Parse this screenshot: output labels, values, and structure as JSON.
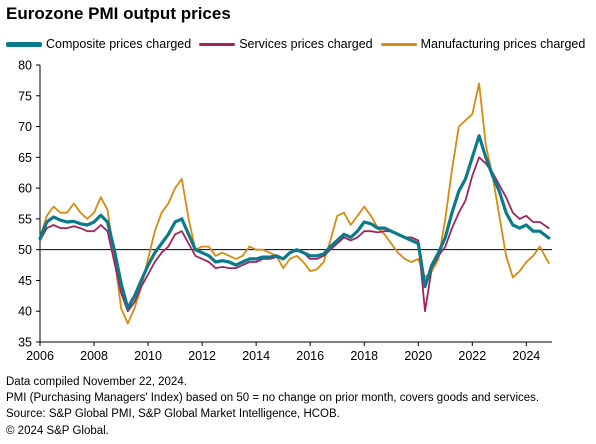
{
  "chart_data": {
    "type": "line",
    "title": "Eurozone PMI output prices",
    "ylim": [
      35,
      80
    ],
    "xlim": [
      2006,
      2024.95
    ],
    "yticks": [
      35,
      40,
      45,
      50,
      55,
      60,
      65,
      70,
      75,
      80
    ],
    "xticks": [
      2006,
      2008,
      2010,
      2012,
      2014,
      2016,
      2018,
      2020,
      2022,
      2024
    ],
    "reference_line": 50,
    "grid": false,
    "legend_position": "top",
    "series": [
      {
        "name": "Composite prices charged",
        "color": "#0b7a8a",
        "x": [
          2006,
          2006.25,
          2006.5,
          2006.75,
          2007,
          2007.25,
          2007.5,
          2007.75,
          2008,
          2008.25,
          2008.5,
          2008.75,
          2009,
          2009.25,
          2009.5,
          2009.75,
          2010,
          2010.25,
          2010.5,
          2010.75,
          2011,
          2011.25,
          2011.5,
          2011.75,
          2012,
          2012.25,
          2012.5,
          2012.75,
          2013,
          2013.25,
          2013.5,
          2013.75,
          2014,
          2014.25,
          2014.5,
          2014.75,
          2015,
          2015.25,
          2015.5,
          2015.75,
          2016,
          2016.25,
          2016.5,
          2016.75,
          2017,
          2017.25,
          2017.5,
          2017.75,
          2018,
          2018.25,
          2018.5,
          2018.75,
          2019,
          2019.25,
          2019.5,
          2019.75,
          2020,
          2020.25,
          2020.5,
          2020.75,
          2021,
          2021.25,
          2021.5,
          2021.75,
          2022,
          2022.25,
          2022.5,
          2022.75,
          2023,
          2023.25,
          2023.5,
          2023.75,
          2024,
          2024.25,
          2024.5,
          2024.83
        ],
        "values": [
          51.8,
          54.5,
          55.3,
          54.8,
          54.5,
          54.6,
          54.2,
          54.0,
          54.5,
          55.6,
          54.5,
          50.0,
          44.5,
          40.5,
          42.5,
          45.0,
          47.5,
          49.5,
          51.0,
          52.5,
          54.5,
          55.0,
          52.5,
          50.0,
          49.5,
          49.0,
          48.0,
          48.2,
          48.0,
          47.5,
          48.0,
          48.5,
          48.5,
          48.8,
          48.8,
          49.0,
          48.5,
          49.5,
          50.0,
          49.5,
          49.0,
          49.0,
          49.3,
          50.5,
          51.5,
          52.5,
          52.0,
          53.0,
          54.5,
          54.2,
          53.5,
          53.5,
          53.0,
          52.5,
          52.0,
          51.5,
          51.0,
          44.0,
          47.5,
          49.5,
          52.0,
          56.0,
          59.5,
          61.5,
          65.0,
          68.5,
          65.0,
          62.0,
          59.5,
          56.0,
          54.0,
          53.5,
          54.0,
          53.0,
          53.0,
          51.9
        ]
      },
      {
        "name": "Services prices charged",
        "color": "#a3245c",
        "x": [
          2006,
          2006.25,
          2006.5,
          2006.75,
          2007,
          2007.25,
          2007.5,
          2007.75,
          2008,
          2008.25,
          2008.5,
          2008.75,
          2009,
          2009.25,
          2009.5,
          2009.75,
          2010,
          2010.25,
          2010.5,
          2010.75,
          2011,
          2011.25,
          2011.5,
          2011.75,
          2012,
          2012.25,
          2012.5,
          2012.75,
          2013,
          2013.25,
          2013.5,
          2013.75,
          2014,
          2014.25,
          2014.5,
          2014.75,
          2015,
          2015.25,
          2015.5,
          2015.75,
          2016,
          2016.25,
          2016.5,
          2016.75,
          2017,
          2017.25,
          2017.5,
          2017.75,
          2018,
          2018.25,
          2018.5,
          2018.75,
          2019,
          2019.25,
          2019.5,
          2019.75,
          2020,
          2020.25,
          2020.5,
          2020.75,
          2021,
          2021.25,
          2021.5,
          2021.75,
          2022,
          2022.25,
          2022.5,
          2022.75,
          2023,
          2023.25,
          2023.5,
          2023.75,
          2024,
          2024.25,
          2024.5,
          2024.83
        ],
        "values": [
          51.5,
          53.5,
          54.0,
          53.5,
          53.5,
          53.8,
          53.5,
          53.0,
          53.0,
          54.0,
          53.0,
          48.0,
          43.0,
          40.0,
          41.5,
          44.0,
          46.0,
          48.0,
          49.5,
          50.5,
          52.5,
          53.0,
          51.0,
          49.0,
          48.5,
          48.0,
          47.0,
          47.2,
          47.0,
          47.0,
          47.5,
          48.0,
          48.0,
          48.5,
          48.5,
          48.8,
          48.5,
          49.5,
          49.8,
          49.5,
          48.5,
          48.5,
          49.0,
          50.0,
          51.0,
          52.0,
          51.5,
          52.0,
          53.0,
          53.0,
          52.8,
          53.0,
          53.0,
          52.5,
          52.0,
          52.0,
          51.5,
          40.0,
          47.0,
          49.0,
          50.5,
          53.5,
          56.0,
          58.0,
          62.0,
          65.0,
          64.0,
          62.5,
          60.5,
          58.5,
          56.0,
          55.0,
          55.5,
          54.5,
          54.5,
          53.5
        ]
      },
      {
        "name": "Manufacturing prices charged",
        "color": "#d98b0f",
        "x": [
          2006,
          2006.25,
          2006.5,
          2006.75,
          2007,
          2007.25,
          2007.5,
          2007.75,
          2008,
          2008.25,
          2008.5,
          2008.75,
          2009,
          2009.25,
          2009.5,
          2009.75,
          2010,
          2010.25,
          2010.5,
          2010.75,
          2011,
          2011.25,
          2011.5,
          2011.75,
          2012,
          2012.25,
          2012.5,
          2012.75,
          2013,
          2013.25,
          2013.5,
          2013.75,
          2014,
          2014.25,
          2014.5,
          2014.75,
          2015,
          2015.25,
          2015.5,
          2015.75,
          2016,
          2016.25,
          2016.5,
          2016.75,
          2017,
          2017.25,
          2017.5,
          2017.75,
          2018,
          2018.25,
          2018.5,
          2018.75,
          2019,
          2019.25,
          2019.5,
          2019.75,
          2020,
          2020.25,
          2020.5,
          2020.75,
          2021,
          2021.25,
          2021.5,
          2021.75,
          2022,
          2022.25,
          2022.5,
          2022.75,
          2023,
          2023.25,
          2023.5,
          2023.75,
          2024,
          2024.25,
          2024.5,
          2024.83
        ],
        "values": [
          52.0,
          55.5,
          57.0,
          56.0,
          56.0,
          57.5,
          56.0,
          55.0,
          56.0,
          58.5,
          56.5,
          49.0,
          40.5,
          38.0,
          40.5,
          44.0,
          48.5,
          53.0,
          56.0,
          57.5,
          60.0,
          61.5,
          55.0,
          50.0,
          50.5,
          50.5,
          49.0,
          49.5,
          49.0,
          48.5,
          49.0,
          50.5,
          50.0,
          50.0,
          49.5,
          49.0,
          47.0,
          48.5,
          49.0,
          48.0,
          46.5,
          46.8,
          48.0,
          51.5,
          55.5,
          56.0,
          54.0,
          55.5,
          57.0,
          55.5,
          53.5,
          52.5,
          51.0,
          49.5,
          48.5,
          48.0,
          48.5,
          45.5,
          46.5,
          48.5,
          55.0,
          63.0,
          70.0,
          71.0,
          72.0,
          77.0,
          67.0,
          62.0,
          55.5,
          49.0,
          45.5,
          46.5,
          48.0,
          49.0,
          50.5,
          47.8
        ]
      }
    ]
  },
  "footnotes": [
    "Data compiled November 22, 2024.",
    "PMI (Purchasing Managers' Index) based on 50 = no change on prior month, covers goods and services.",
    "Source: S&P Global PMI, S&P Global Market Intelligence, HCOB.",
    "© 2024 S&P Global."
  ]
}
